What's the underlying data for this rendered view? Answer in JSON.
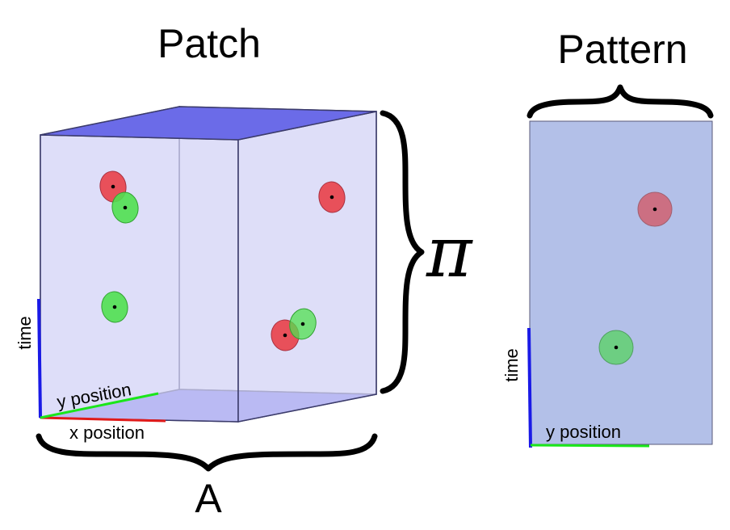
{
  "patch": {
    "title": "Patch",
    "axis_time": "time",
    "axis_y": "y position",
    "axis_x": "x position",
    "brace_right_label": "π",
    "brace_bottom_label": "A",
    "colors": {
      "face": "#dcdcf8",
      "top_bottom": "#6b6be8",
      "edge": "#3b3b6b",
      "red": "#e8505a",
      "green": "#50e050",
      "time_axis": "#1a1ae6",
      "x_axis": "#e01a1a",
      "y_axis": "#1ae61a"
    }
  },
  "pattern": {
    "title": "Pattern",
    "axis_time": "time",
    "axis_y": "y position",
    "colors": {
      "panel": "#b3c0e8",
      "red": "#d06070",
      "green": "#60d070",
      "time_axis": "#1a1ae6",
      "y_axis": "#1ae61a"
    }
  }
}
